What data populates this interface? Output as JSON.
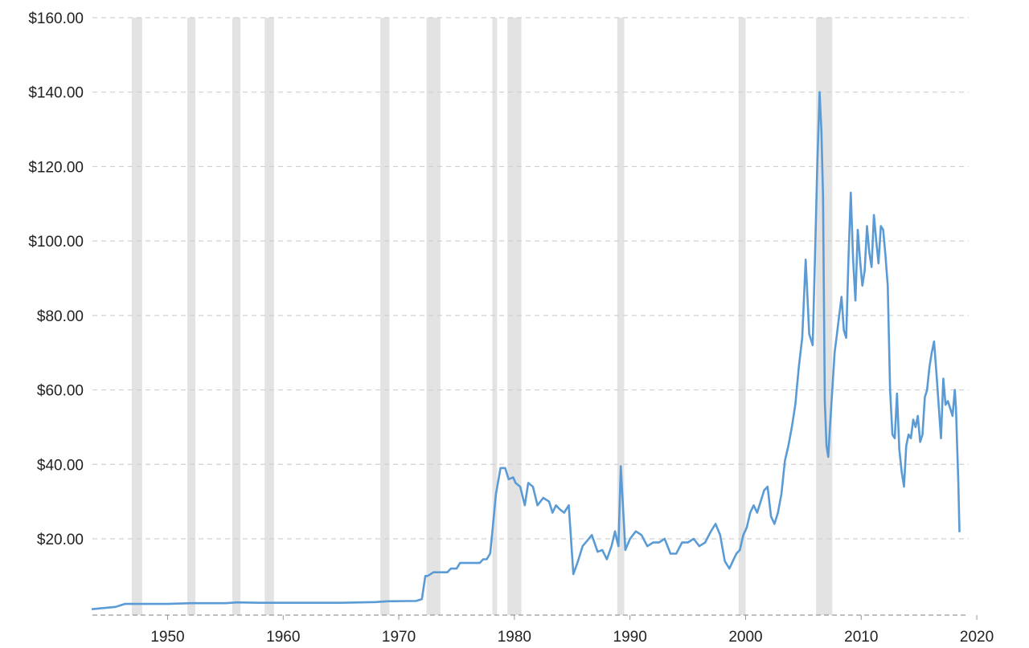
{
  "chart_data": {
    "type": "line",
    "title": "",
    "xlabel": "",
    "ylabel": "",
    "xlim": [
      1943.5,
      2019.3
    ],
    "ylim": [
      -0.5,
      160
    ],
    "grid": "horizontal-dashed",
    "legend": "none",
    "x_ticks": [
      1950,
      1960,
      1970,
      1980,
      1990,
      2000,
      2010,
      2020
    ],
    "y_ticks": [
      20,
      40,
      60,
      80,
      100,
      120,
      140,
      160
    ],
    "y_tick_labels": [
      "$20.00",
      "$40.00",
      "$60.00",
      "$80.00",
      "$100.00",
      "$120.00",
      "$140.00",
      "$160.00"
    ],
    "recession_shading": [
      [
        1946.9,
        1947.8
      ],
      [
        1951.7,
        1952.4
      ],
      [
        1955.6,
        1956.3
      ],
      [
        1958.4,
        1959.2
      ],
      [
        1968.4,
        1969.2
      ],
      [
        1972.4,
        1973.6
      ],
      [
        1978.1,
        1978.5
      ],
      [
        1979.4,
        1980.6
      ],
      [
        1988.9,
        1989.5
      ],
      [
        1999.4,
        2000.0
      ],
      [
        2006.1,
        2007.5
      ]
    ],
    "series": [
      {
        "x": [
          1943.5,
          1944.5,
          1945.5,
          1946.0,
          1946.3,
          1950.0,
          1952.0,
          1955.0,
          1956.0,
          1958.0,
          1960.0,
          1965.0,
          1968.0,
          1969.0,
          1971.5,
          1972.0,
          1972.3,
          1972.5,
          1973.0,
          1973.5,
          1974.2,
          1974.5,
          1975.0,
          1975.3,
          1976.0,
          1977.0,
          1977.3,
          1977.6,
          1977.9,
          1978.1,
          1978.4,
          1978.8,
          1979.2,
          1979.5,
          1979.9,
          1980.1,
          1980.5,
          1980.9,
          1981.2,
          1981.6,
          1982.0,
          1982.5,
          1983.0,
          1983.3,
          1983.6,
          1983.9,
          1984.3,
          1984.7,
          1985.1,
          1985.5,
          1985.9,
          1986.3,
          1986.7,
          1987.2,
          1987.6,
          1988.0,
          1988.4,
          1988.7,
          1988.85,
          1989.0,
          1989.2,
          1989.6,
          1990.0,
          1990.5,
          1991.0,
          1991.5,
          1992.0,
          1992.5,
          1993.0,
          1993.5,
          1994.0,
          1994.5,
          1995.0,
          1995.5,
          1996.0,
          1996.5,
          1997.0,
          1997.4,
          1997.8,
          1998.2,
          1998.6,
          1998.9,
          1999.2,
          1999.5,
          1999.8,
          2000.1,
          2000.4,
          2000.7,
          2001.0,
          2001.3,
          2001.6,
          2001.9,
          2002.2,
          2002.5,
          2002.8,
          2003.1,
          2003.4,
          2003.7,
          2004.0,
          2004.3,
          2004.6,
          2004.9,
          2005.2,
          2005.5,
          2005.8,
          2006.0,
          2006.2,
          2006.4,
          2006.55,
          2006.7,
          2006.85,
          2007.0,
          2007.15,
          2007.3,
          2007.5,
          2007.7,
          2007.9,
          2008.1,
          2008.3,
          2008.5,
          2008.7,
          2008.9,
          2009.1,
          2009.3,
          2009.5,
          2009.7,
          2009.9,
          2010.1,
          2010.3,
          2010.5,
          2010.7,
          2010.9,
          2011.1,
          2011.3,
          2011.5,
          2011.7,
          2011.9,
          2012.1,
          2012.3,
          2012.5,
          2012.7,
          2012.9,
          2013.1,
          2013.3,
          2013.5,
          2013.7,
          2013.9,
          2014.1,
          2014.3,
          2014.5,
          2014.7,
          2014.9,
          2015.1,
          2015.3,
          2015.5,
          2015.7,
          2015.9,
          2016.1,
          2016.3,
          2016.5,
          2016.7,
          2016.9,
          2017.1,
          2017.3,
          2017.5,
          2017.7,
          2017.9,
          2018.1,
          2018.2,
          2018.3,
          2018.4,
          2018.5
        ],
        "y": [
          1.1,
          1.4,
          1.7,
          2.2,
          2.5,
          2.5,
          2.7,
          2.7,
          2.9,
          2.8,
          2.8,
          2.8,
          3.0,
          3.2,
          3.3,
          3.8,
          10.0,
          10.0,
          11.0,
          11.0,
          11.0,
          12.0,
          12.0,
          13.5,
          13.5,
          13.5,
          14.5,
          14.5,
          16.0,
          22.0,
          32.0,
          39.0,
          39.0,
          36.0,
          36.5,
          35.0,
          34.0,
          29.0,
          35.0,
          34.0,
          29.0,
          31.0,
          30.0,
          27.0,
          29.0,
          28.0,
          27.0,
          29.0,
          10.5,
          14.0,
          18.0,
          19.5,
          21.0,
          16.5,
          17.0,
          14.5,
          18.0,
          22.0,
          20.0,
          18.0,
          39.5,
          17.0,
          20.0,
          22.0,
          21.0,
          18.0,
          19.0,
          19.0,
          20.0,
          16.0,
          16.0,
          19.0,
          19.0,
          20.0,
          18.0,
          19.0,
          22.0,
          24.0,
          21.0,
          14.0,
          12.0,
          14.0,
          16.0,
          17.0,
          21.0,
          23.0,
          27.0,
          29.0,
          27.0,
          30.0,
          33.0,
          34.0,
          26.0,
          24.0,
          27.0,
          32.0,
          41.0,
          45.0,
          50.0,
          56.0,
          66.0,
          74.0,
          95.0,
          75.0,
          72.0,
          95.0,
          120.0,
          140.0,
          130.0,
          112.0,
          57.0,
          45.0,
          42.0,
          50.0,
          60.0,
          70.0,
          75.0,
          80.0,
          85.0,
          76.0,
          74.0,
          95.0,
          113.0,
          95.0,
          84.0,
          103.0,
          95.0,
          88.0,
          92.0,
          104.0,
          97.0,
          93.0,
          107.0,
          100.0,
          94.0,
          104.0,
          103.0,
          96.0,
          88.0,
          60.0,
          48.0,
          47.0,
          59.0,
          44.0,
          38.0,
          34.0,
          45.0,
          48.0,
          47.0,
          52.0,
          50.0,
          53.0,
          46.0,
          48.0,
          58.0,
          60.0,
          66.0,
          70.0,
          73.0,
          65.0,
          56.0,
          47.0,
          63.0,
          56.0,
          57.0,
          55.0,
          53.0,
          60.0,
          55.0,
          45.0,
          35.0,
          22.0
        ]
      }
    ]
  }
}
